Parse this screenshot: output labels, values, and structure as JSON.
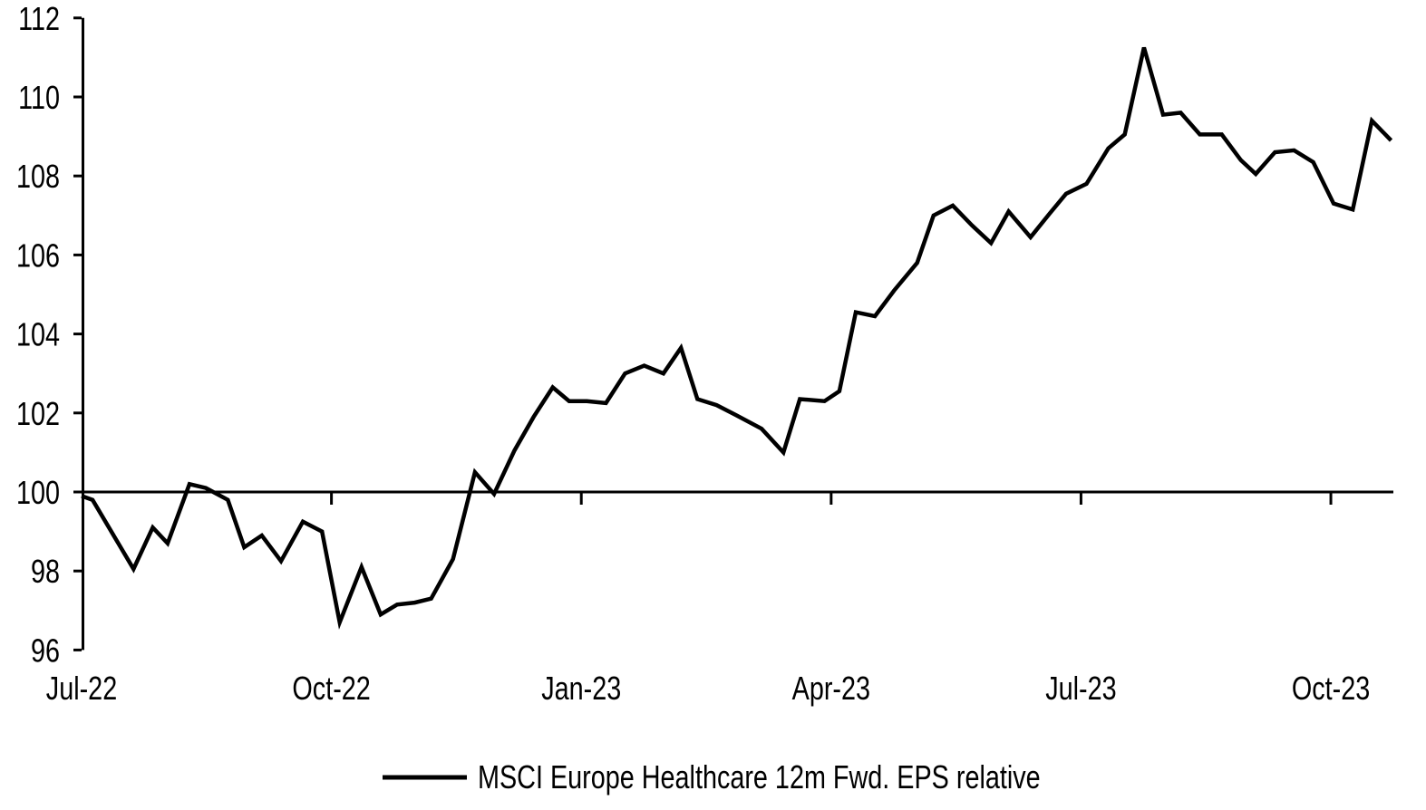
{
  "chart_data": {
    "type": "line",
    "title": "",
    "xlabel": "",
    "ylabel": "",
    "grid": false,
    "background_color": "#ffffff",
    "axis_color": "#000000",
    "baseline_value": 100,
    "ylim": [
      96,
      112
    ],
    "y_ticks": [
      96,
      98,
      100,
      102,
      104,
      106,
      108,
      110,
      112
    ],
    "y_tick_labels": [
      "96",
      "98",
      "100",
      "102",
      "104",
      "106",
      "108",
      "110",
      "112"
    ],
    "x_tick_labels": [
      "Jul-22",
      "Oct-22",
      "Jan-23",
      "Apr-23",
      "Jul-23",
      "Oct-23"
    ],
    "x_tick_month_offsets": [
      0,
      3,
      6,
      9,
      12,
      15
    ],
    "x_range_months": [
      0,
      15.75
    ],
    "legend": {
      "position": "bottom-center",
      "label": "MSCI Europe Healthcare 12m Fwd. EPS relative"
    },
    "series": [
      {
        "name": "MSCI Europe Healthcare 12m Fwd. EPS relative",
        "color": "#000000",
        "points": [
          {
            "date": "2022-07-01",
            "value": 99.9
          },
          {
            "date": "2022-07-05",
            "value": 99.8
          },
          {
            "date": "2022-07-20",
            "value": 98.05
          },
          {
            "date": "2022-07-27",
            "value": 99.1
          },
          {
            "date": "2022-08-02",
            "value": 98.7
          },
          {
            "date": "2022-08-10",
            "value": 100.2
          },
          {
            "date": "2022-08-16",
            "value": 100.1
          },
          {
            "date": "2022-08-24",
            "value": 99.8
          },
          {
            "date": "2022-08-30",
            "value": 98.6
          },
          {
            "date": "2022-09-06",
            "value": 98.9
          },
          {
            "date": "2022-09-13",
            "value": 98.25
          },
          {
            "date": "2022-09-21",
            "value": 99.25
          },
          {
            "date": "2022-09-28",
            "value": 99.0
          },
          {
            "date": "2022-10-04",
            "value": 96.7
          },
          {
            "date": "2022-10-12",
            "value": 98.1
          },
          {
            "date": "2022-10-19",
            "value": 96.9
          },
          {
            "date": "2022-10-25",
            "value": 97.15
          },
          {
            "date": "2022-11-01",
            "value": 97.2
          },
          {
            "date": "2022-11-07",
            "value": 97.3
          },
          {
            "date": "2022-11-15",
            "value": 98.3
          },
          {
            "date": "2022-11-23",
            "value": 100.5
          },
          {
            "date": "2022-11-30",
            "value": 99.95
          },
          {
            "date": "2022-12-07",
            "value": 101.05
          },
          {
            "date": "2022-12-14",
            "value": 101.9
          },
          {
            "date": "2022-12-21",
            "value": 102.65
          },
          {
            "date": "2022-12-27",
            "value": 102.3
          },
          {
            "date": "2023-01-03",
            "value": 102.3
          },
          {
            "date": "2023-01-10",
            "value": 102.25
          },
          {
            "date": "2023-01-17",
            "value": 103.0
          },
          {
            "date": "2023-01-24",
            "value": 103.2
          },
          {
            "date": "2023-01-31",
            "value": 103.0
          },
          {
            "date": "2023-02-07",
            "value": 103.65
          },
          {
            "date": "2023-02-13",
            "value": 102.35
          },
          {
            "date": "2023-02-20",
            "value": 102.2
          },
          {
            "date": "2023-02-27",
            "value": 101.95
          },
          {
            "date": "2023-03-06",
            "value": 101.6
          },
          {
            "date": "2023-03-14",
            "value": 101.0
          },
          {
            "date": "2023-03-20",
            "value": 102.35
          },
          {
            "date": "2023-03-29",
            "value": 102.3
          },
          {
            "date": "2023-04-04",
            "value": 102.55
          },
          {
            "date": "2023-04-10",
            "value": 104.55
          },
          {
            "date": "2023-04-17",
            "value": 104.45
          },
          {
            "date": "2023-04-24",
            "value": 105.1
          },
          {
            "date": "2023-05-02",
            "value": 105.8
          },
          {
            "date": "2023-05-08",
            "value": 107.0
          },
          {
            "date": "2023-05-15",
            "value": 107.25
          },
          {
            "date": "2023-05-22",
            "value": 106.75
          },
          {
            "date": "2023-05-29",
            "value": 106.3
          },
          {
            "date": "2023-06-05",
            "value": 107.1
          },
          {
            "date": "2023-06-13",
            "value": 106.45
          },
          {
            "date": "2023-06-20",
            "value": 107.05
          },
          {
            "date": "2023-06-26",
            "value": 107.55
          },
          {
            "date": "2023-07-03",
            "value": 107.8
          },
          {
            "date": "2023-07-11",
            "value": 108.7
          },
          {
            "date": "2023-07-17",
            "value": 109.05
          },
          {
            "date": "2023-07-24",
            "value": 111.25
          },
          {
            "date": "2023-07-31",
            "value": 109.55
          },
          {
            "date": "2023-08-07",
            "value": 109.6
          },
          {
            "date": "2023-08-14",
            "value": 109.05
          },
          {
            "date": "2023-08-22",
            "value": 109.05
          },
          {
            "date": "2023-08-29",
            "value": 108.4
          },
          {
            "date": "2023-09-04",
            "value": 108.05
          },
          {
            "date": "2023-09-11",
            "value": 108.6
          },
          {
            "date": "2023-09-18",
            "value": 108.65
          },
          {
            "date": "2023-09-25",
            "value": 108.35
          },
          {
            "date": "2023-10-02",
            "value": 107.3
          },
          {
            "date": "2023-10-09",
            "value": 107.15
          },
          {
            "date": "2023-10-16",
            "value": 109.4
          },
          {
            "date": "2023-10-23",
            "value": 108.9
          }
        ]
      }
    ]
  }
}
